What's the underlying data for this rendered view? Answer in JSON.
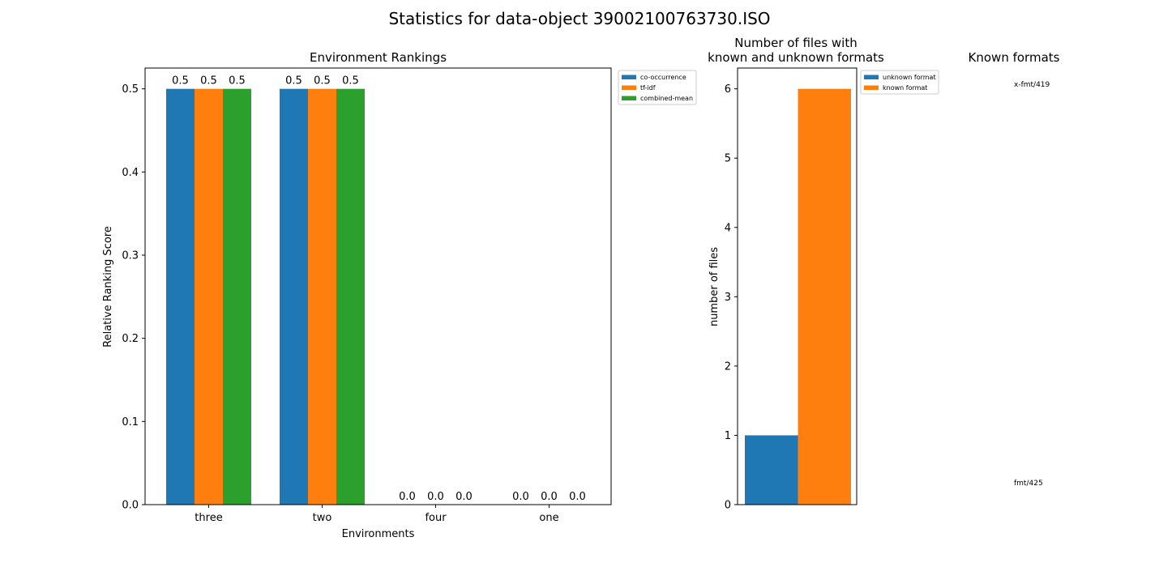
{
  "figure": {
    "suptitle": "Statistics for data-object 39002100763730.ISO"
  },
  "colors": {
    "blue": "#1f77b4",
    "orange": "#ff7f0e",
    "green": "#2ca02c"
  },
  "chart_data": [
    {
      "type": "bar",
      "title": "Environment Rankings",
      "xlabel": "Environments",
      "ylabel": "Relative Ranking Score",
      "categories": [
        "three",
        "two",
        "four",
        "one"
      ],
      "series": [
        {
          "name": "co-occurrence",
          "values": [
            0.5,
            0.5,
            0.0,
            0.0
          ],
          "color": "#1f77b4"
        },
        {
          "name": "tf-idf",
          "values": [
            0.5,
            0.5,
            0.0,
            0.0
          ],
          "color": "#ff7f0e"
        },
        {
          "name": "combined-mean",
          "values": [
            0.5,
            0.5,
            0.0,
            0.0
          ],
          "color": "#2ca02c"
        }
      ],
      "data_labels": true,
      "ylim": [
        0,
        0.525
      ],
      "yticks": [
        "0.0",
        "0.1",
        "0.2",
        "0.3",
        "0.4",
        "0.5"
      ],
      "legend": "outside-top-right",
      "grid": false
    },
    {
      "type": "bar",
      "title": "Number of files with\nknown and unknown formats",
      "xlabel": "",
      "ylabel": "number of files",
      "series": [
        {
          "name": "unknown format",
          "values": [
            1
          ],
          "color": "#1f77b4"
        },
        {
          "name": "known format",
          "values": [
            6
          ],
          "color": "#ff7f0e"
        }
      ],
      "ylim": [
        0,
        6.3
      ],
      "yticks": [
        "0",
        "1",
        "2",
        "3",
        "4",
        "5",
        "6"
      ],
      "legend": "outside-top-right",
      "grid": false
    },
    {
      "type": "pie",
      "title": "Known formats",
      "labels": [
        "x-fmt/419",
        "fmt/425"
      ]
    }
  ]
}
